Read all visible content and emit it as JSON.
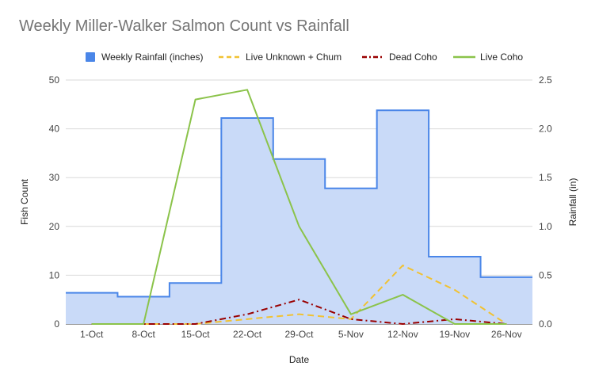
{
  "chart_data": {
    "type": "line",
    "title": "Weekly Miller-Walker Salmon Count vs Rainfall",
    "xlabel": "Date",
    "ylabel": "Fish Count",
    "y2label": "Rainfall (in)",
    "categories": [
      "1-Oct",
      "8-Oct",
      "15-Oct",
      "22-Oct",
      "29-Oct",
      "5-Nov",
      "12-Nov",
      "19-Nov",
      "26-Nov"
    ],
    "ylim": [
      0,
      50
    ],
    "y2lim": [
      0,
      2.5
    ],
    "yticks": [
      "0",
      "10",
      "20",
      "30",
      "40",
      "50"
    ],
    "y2ticks": [
      "0.0",
      "0.5",
      "1.0",
      "1.5",
      "2.0",
      "2.5"
    ],
    "grid": true,
    "legend_position": "top",
    "series": [
      {
        "name": "Weekly Rainfall (inches)",
        "type": "stepped-area",
        "axis": "right",
        "color": "#4a86e8",
        "fill": "#c9daf8",
        "values": [
          0.32,
          0.28,
          0.42,
          2.11,
          1.69,
          1.39,
          2.19,
          0.69,
          0.48
        ]
      },
      {
        "name": "Live Unknown + Chum",
        "type": "line",
        "style": "dashed",
        "axis": "left",
        "color": "#f1c232",
        "values": [
          0,
          0,
          0,
          1,
          2,
          1,
          12,
          7,
          0
        ]
      },
      {
        "name": "Dead Coho",
        "type": "line",
        "style": "dash-dot",
        "axis": "left",
        "color": "#990000",
        "values": [
          0,
          0,
          0,
          2,
          5,
          1,
          0,
          1,
          0
        ]
      },
      {
        "name": "Live Coho",
        "type": "line",
        "style": "solid",
        "axis": "left",
        "color": "#8bc34a",
        "values": [
          0,
          0,
          46,
          48,
          20,
          2,
          6,
          0,
          0
        ]
      }
    ]
  }
}
